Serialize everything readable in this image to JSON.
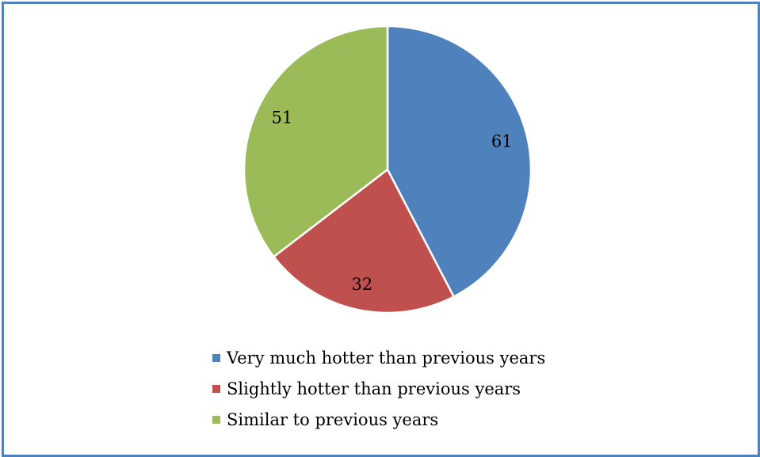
{
  "chart_data": {
    "type": "pie",
    "title": "",
    "slices": [
      {
        "label": "Very much hotter than previous years",
        "value": 61,
        "color": "#4f81bd"
      },
      {
        "label": "Slightly hotter than previous years",
        "value": 32,
        "color": "#c0504d"
      },
      {
        "label": "Similar to previous years",
        "value": 51,
        "color": "#9bbb59"
      }
    ],
    "legend_position": "bottom",
    "data_labels": true
  },
  "colors": {
    "frame_border": "#4f81bd",
    "slice_separator": "#ffffff"
  }
}
